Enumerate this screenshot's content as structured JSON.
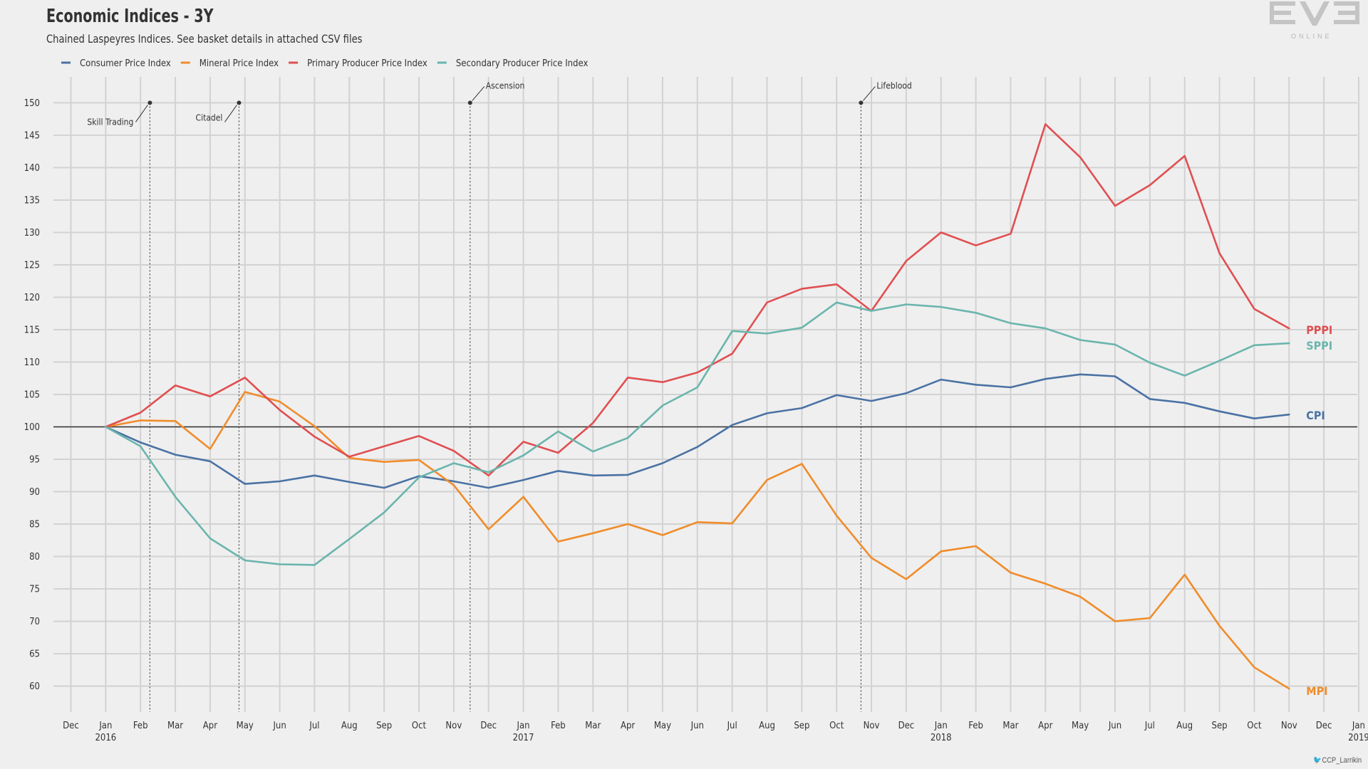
{
  "header": {
    "title": "Economic Indices - 3Y",
    "subtitle": "Chained Laspeyres Indices. See basket details in attached CSV files"
  },
  "logo": {
    "text": "EVE",
    "sub": "ONLINE"
  },
  "credit": {
    "handle": "CCP_Larrikin",
    "icon": "twitter-bird-icon"
  },
  "colors": {
    "cpi": "#4a72a4",
    "mpi": "#f08c2a",
    "pppi": "#e04f51",
    "sppi": "#6ab5ad",
    "baseline": "#333333",
    "grid": "#d2d2d2",
    "background": "#efefef"
  },
  "chart_data": {
    "type": "line",
    "title": "Economic Indices - 3Y",
    "subtitle": "Chained Laspeyres Indices. See basket details in attached CSV files",
    "ylim": [
      56,
      154
    ],
    "yticks": [
      60,
      65,
      70,
      75,
      80,
      85,
      90,
      95,
      100,
      105,
      110,
      115,
      120,
      125,
      130,
      135,
      140,
      145,
      150
    ],
    "baseline": 100,
    "grid": true,
    "legend_position": "top-left",
    "x_axis": {
      "ticks": [
        "Dec",
        "Jan",
        "Feb",
        "Mar",
        "Apr",
        "May",
        "Jun",
        "Jul",
        "Aug",
        "Sep",
        "Oct",
        "Nov",
        "Dec",
        "Jan",
        "Feb",
        "Mar",
        "Apr",
        "May",
        "Jun",
        "Jul",
        "Aug",
        "Sep",
        "Oct",
        "Nov",
        "Dec",
        "Jan",
        "Feb",
        "Mar",
        "Apr",
        "May",
        "Jun",
        "Jul",
        "Aug",
        "Sep",
        "Oct",
        "Nov",
        "Dec",
        "Jan"
      ],
      "years": [
        {
          "label": "2016",
          "tick_index": 1
        },
        {
          "label": "2017",
          "tick_index": 13
        },
        {
          "label": "2018",
          "tick_index": 25
        },
        {
          "label": "2019",
          "tick_index": 37
        }
      ]
    },
    "series": [
      {
        "name": "Consumer Price Index",
        "short": "CPI",
        "color": "#4a72a4",
        "start_tick": 1,
        "values": [
          100,
          97.6,
          95.7,
          94.7,
          91.2,
          91.6,
          92.5,
          91.5,
          90.6,
          92.4,
          91.6,
          90.6,
          91.8,
          93.2,
          92.5,
          92.6,
          94.4,
          96.9,
          100.3,
          102.1,
          102.9,
          104.9,
          104.0,
          105.2,
          107.3,
          106.5,
          106.1,
          107.4,
          108.1,
          107.8,
          104.3,
          103.7,
          102.4,
          101.3,
          101.9
        ]
      },
      {
        "name": "Mineral Price Index",
        "short": "MPI",
        "color": "#f08c2a",
        "start_tick": 1,
        "values": [
          100,
          101.0,
          100.9,
          96.6,
          105.4,
          103.9,
          100.1,
          95.2,
          94.6,
          94.9,
          91.0,
          84.2,
          89.2,
          82.3,
          83.6,
          85.0,
          83.3,
          85.3,
          85.1,
          91.8,
          94.3,
          86.3,
          79.8,
          76.5,
          80.8,
          81.6,
          77.5,
          75.8,
          73.8,
          70.0,
          70.5,
          77.2,
          69.3,
          62.9,
          59.6
        ]
      },
      {
        "name": "Primary Producer Price Index",
        "short": "PPPI",
        "color": "#e04f51",
        "start_tick": 1,
        "values": [
          100,
          102.2,
          106.4,
          104.7,
          107.6,
          102.6,
          98.5,
          95.4,
          97.0,
          98.6,
          96.3,
          92.5,
          97.7,
          96.0,
          100.6,
          107.6,
          106.9,
          108.4,
          111.3,
          119.2,
          121.3,
          122.0,
          117.9,
          125.6,
          130.0,
          128.0,
          129.8,
          146.7,
          141.6,
          134.1,
          137.3,
          141.8,
          126.8,
          118.2,
          115.2
        ]
      },
      {
        "name": "Secondary Producer Price Index",
        "short": "SPPI",
        "color": "#6ab5ad",
        "start_tick": 1,
        "values": [
          100,
          97.0,
          89.2,
          82.8,
          79.4,
          78.8,
          78.7,
          82.7,
          86.8,
          92.2,
          94.4,
          93.0,
          95.6,
          99.3,
          96.2,
          98.3,
          103.3,
          106.1,
          114.8,
          114.4,
          115.3,
          119.2,
          117.9,
          118.9,
          118.5,
          117.6,
          116.0,
          115.2,
          113.4,
          112.7,
          109.9,
          107.9,
          110.2,
          112.6,
          112.9
        ]
      }
    ],
    "end_labels": [
      {
        "text": "PPPI",
        "series": "Primary Producer Price Index",
        "value": 115.0
      },
      {
        "text": "SPPI",
        "series": "Secondary Producer Price Index",
        "value": 112.6
      },
      {
        "text": "CPI",
        "series": "Consumer Price Index",
        "value": 101.8
      },
      {
        "text": "MPI",
        "series": "Mineral Price Index",
        "value": 59.3
      }
    ],
    "annotations": [
      {
        "text": "Skill Trading",
        "tick": 2.27,
        "value": 150,
        "side": "left"
      },
      {
        "text": "Citadel",
        "tick": 4.83,
        "value": 150,
        "side": "left"
      },
      {
        "text": "Ascension",
        "tick": 11.47,
        "value": 150,
        "side": "right"
      },
      {
        "text": "Lifeblood",
        "tick": 22.7,
        "value": 150,
        "side": "right"
      }
    ]
  }
}
